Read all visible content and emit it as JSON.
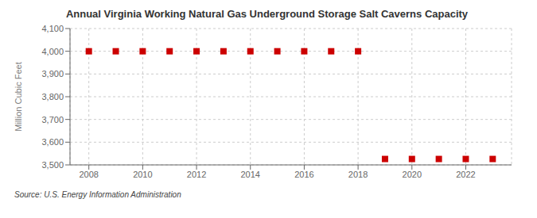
{
  "chart_data": {
    "type": "scatter",
    "title": "Annual Virginia Working Natural Gas Underground Storage Salt Caverns Capacity",
    "ylabel": "Million Cubic Feet",
    "source": "Source: U.S. Energy Information Administration",
    "x": [
      2008,
      2009,
      2010,
      2011,
      2012,
      2013,
      2014,
      2015,
      2016,
      2017,
      2018,
      2019,
      2020,
      2021,
      2022,
      2023
    ],
    "values": [
      4000,
      4000,
      4000,
      4000,
      4000,
      4000,
      4000,
      4000,
      4000,
      4000,
      4000,
      3526,
      3526,
      3526,
      3526,
      3526
    ],
    "color": "#cc0000",
    "marker": "square",
    "xlim": [
      2007.3,
      2023.7
    ],
    "xticks": [
      2008,
      2010,
      2012,
      2014,
      2016,
      2018,
      2020,
      2022
    ],
    "ylim": [
      3500,
      4100
    ],
    "yticks": [
      {
        "value": 3500,
        "label": "3,500"
      },
      {
        "value": 3600,
        "label": "3,600"
      },
      {
        "value": 3700,
        "label": "3,700"
      },
      {
        "value": 3800,
        "label": "3,800"
      },
      {
        "value": 3900,
        "label": "3,900"
      },
      {
        "value": 4000,
        "label": "4,000"
      },
      {
        "value": 4100,
        "label": "4,100"
      }
    ],
    "grid": true
  }
}
